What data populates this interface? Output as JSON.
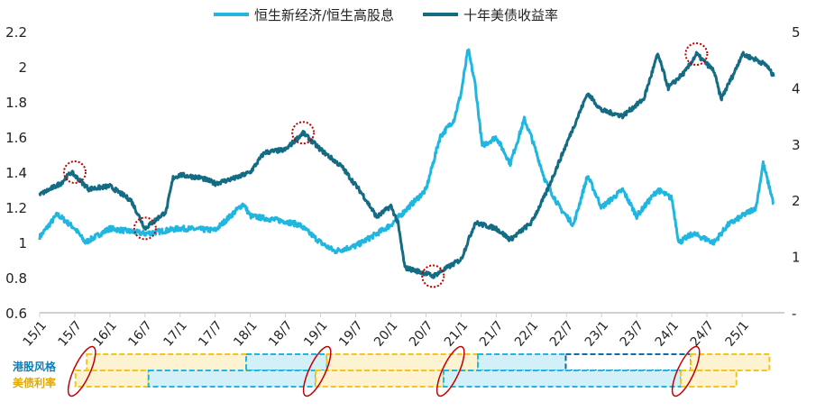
{
  "chart_data": {
    "type": "line",
    "legend": {
      "position": "top",
      "entries": [
        "恒生新经济/恒生高股息",
        "十年美债收益率"
      ]
    },
    "colors": {
      "ratio": "#1fb6e0",
      "yield": "#146b84",
      "growth_band": "#d3f0f8",
      "value_band": "#fdf3d3",
      "band_border_yellow": "#f5c518",
      "band_border_blue": "#1fb6e0",
      "band_border_dark": "#0e6fa8",
      "marker": "#c00000"
    },
    "left_axis": {
      "ylim": [
        0.6,
        2.2
      ],
      "ticks": [
        "0.6",
        "0.8",
        "1",
        "1.2",
        "1.4",
        "1.6",
        "1.8",
        "2",
        "2.2"
      ]
    },
    "right_axis": {
      "ylim": [
        0,
        5
      ],
      "ticks": [
        "-",
        "1",
        "2",
        "3",
        "4",
        "5"
      ]
    },
    "x_ticks": [
      "15/1",
      "15/7",
      "16/1",
      "16/7",
      "17/1",
      "17/7",
      "18/1",
      "18/7",
      "19/1",
      "19/7",
      "20/1",
      "20/7",
      "21/1",
      "21/7",
      "22/1",
      "22/7",
      "23/1",
      "23/7",
      "24/1",
      "24/7",
      "25/1"
    ],
    "grid": false,
    "series": [
      {
        "name": "恒生新经济/恒生高股息",
        "axis": "left",
        "x": [
          2015.0,
          2015.25,
          2015.5,
          2015.65,
          2016.0,
          2016.5,
          2017.0,
          2017.5,
          2017.9,
          2018.0,
          2018.5,
          2018.7,
          2019.0,
          2019.2,
          2019.5,
          2019.8,
          2020.0,
          2020.2,
          2020.5,
          2020.7,
          2020.9,
          2021.0,
          2021.1,
          2021.2,
          2021.3,
          2021.5,
          2021.7,
          2021.9,
          2022.0,
          2022.2,
          2022.4,
          2022.6,
          2022.8,
          2023.0,
          2023.3,
          2023.5,
          2023.8,
          2024.0,
          2024.1,
          2024.3,
          2024.6,
          2024.8,
          2025.0,
          2025.2,
          2025.3,
          2025.45
        ],
        "y": [
          1.03,
          1.16,
          1.08,
          1.0,
          1.08,
          1.05,
          1.08,
          1.07,
          1.22,
          1.15,
          1.12,
          1.1,
          1.0,
          0.95,
          0.98,
          1.05,
          1.1,
          1.18,
          1.3,
          1.6,
          1.7,
          1.85,
          2.1,
          1.9,
          1.55,
          1.6,
          1.45,
          1.7,
          1.6,
          1.35,
          1.2,
          1.1,
          1.38,
          1.2,
          1.3,
          1.15,
          1.3,
          1.25,
          1.0,
          1.05,
          1.0,
          1.1,
          1.15,
          1.2,
          1.45,
          1.22
        ]
      },
      {
        "name": "十年美债收益率",
        "axis": "right",
        "x": [
          2015.0,
          2015.3,
          2015.45,
          2015.7,
          2016.0,
          2016.3,
          2016.5,
          2016.8,
          2016.9,
          2017.0,
          2017.3,
          2017.5,
          2017.8,
          2018.0,
          2018.2,
          2018.5,
          2018.75,
          2019.0,
          2019.3,
          2019.6,
          2019.8,
          2020.0,
          2020.1,
          2020.2,
          2020.5,
          2020.6,
          2021.0,
          2021.2,
          2021.5,
          2021.7,
          2022.0,
          2022.2,
          2022.5,
          2022.8,
          2023.0,
          2023.3,
          2023.6,
          2023.8,
          2023.95,
          2024.2,
          2024.35,
          2024.6,
          2024.7,
          2024.9,
          2025.0,
          2025.2,
          2025.35,
          2025.45
        ],
        "y": [
          2.1,
          2.3,
          2.5,
          2.2,
          2.25,
          2.0,
          1.5,
          1.8,
          2.4,
          2.45,
          2.4,
          2.3,
          2.4,
          2.5,
          2.85,
          2.9,
          3.2,
          2.9,
          2.6,
          2.1,
          1.7,
          1.9,
          1.6,
          0.8,
          0.7,
          0.65,
          0.95,
          1.6,
          1.5,
          1.3,
          1.6,
          2.1,
          3.0,
          3.9,
          3.6,
          3.5,
          3.8,
          4.6,
          4.0,
          4.3,
          4.6,
          4.3,
          3.8,
          4.3,
          4.6,
          4.5,
          4.4,
          4.2
        ]
      }
    ],
    "highlight_points": [
      [
        2015.5,
        2.5,
        "right"
      ],
      [
        2016.5,
        1.5,
        "right"
      ],
      [
        2018.75,
        3.2,
        "right"
      ],
      [
        2020.6,
        0.65,
        "right"
      ],
      [
        2024.35,
        4.6,
        "right"
      ]
    ],
    "band_rows": [
      {
        "label": "港股风格",
        "color": "#0e7fb8",
        "segments": [
          {
            "from": 2015.67,
            "to": 2017.94,
            "style": "value"
          },
          {
            "from": 2017.94,
            "to": 2019.09,
            "style": "growth"
          },
          {
            "from": 2019.09,
            "to": 2021.24,
            "style": "value"
          },
          {
            "from": 2021.24,
            "to": 2022.49,
            "style": "growth"
          },
          {
            "from": 2022.49,
            "to": 2024.27,
            "style": "neutral"
          },
          {
            "from": 2024.27,
            "to": 2025.39,
            "style": "value"
          }
        ]
      },
      {
        "label": "美债利率",
        "color": "#e0a800",
        "segments": [
          {
            "from": 2015.51,
            "to": 2016.55,
            "style": "value"
          },
          {
            "from": 2016.55,
            "to": 2018.93,
            "style": "growth"
          },
          {
            "from": 2018.93,
            "to": 2020.75,
            "style": "value"
          },
          {
            "from": 2020.75,
            "to": 2024.13,
            "style": "growth"
          },
          {
            "from": 2024.13,
            "to": 2024.92,
            "style": "value"
          }
        ]
      }
    ],
    "turning_points": [
      2015.6,
      2018.95,
      2020.85,
      2024.2
    ]
  }
}
